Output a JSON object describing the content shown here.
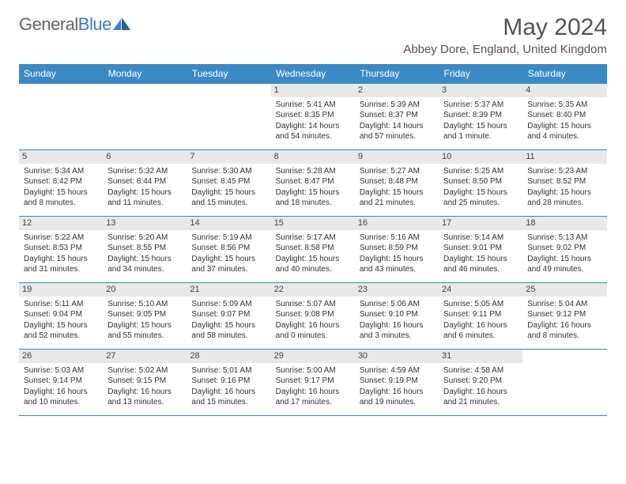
{
  "brand": {
    "part1": "General",
    "part2": "Blue"
  },
  "title": "May 2024",
  "location": "Abbey Dore, England, United Kingdom",
  "colors": {
    "header_bg": "#3b8ac4",
    "header_text": "#ffffff",
    "daynum_bg": "#e8e8e8",
    "border": "#3b8ac4",
    "text": "#333333",
    "page_bg": "#ffffff"
  },
  "typography": {
    "title_fontsize": 30,
    "location_fontsize": 15,
    "dayheader_fontsize": 12,
    "cell_fontsize": 10
  },
  "day_headers": [
    "Sunday",
    "Monday",
    "Tuesday",
    "Wednesday",
    "Thursday",
    "Friday",
    "Saturday"
  ],
  "layout": {
    "columns": 7,
    "rows": 5,
    "first_weekday_index": 3,
    "days_in_month": 31
  },
  "days": [
    {
      "n": 1,
      "sunrise": "5:41 AM",
      "sunset": "8:35 PM",
      "daylight": "14 hours and 54 minutes."
    },
    {
      "n": 2,
      "sunrise": "5:39 AM",
      "sunset": "8:37 PM",
      "daylight": "14 hours and 57 minutes."
    },
    {
      "n": 3,
      "sunrise": "5:37 AM",
      "sunset": "8:39 PM",
      "daylight": "15 hours and 1 minute."
    },
    {
      "n": 4,
      "sunrise": "5:35 AM",
      "sunset": "8:40 PM",
      "daylight": "15 hours and 4 minutes."
    },
    {
      "n": 5,
      "sunrise": "5:34 AM",
      "sunset": "8:42 PM",
      "daylight": "15 hours and 8 minutes."
    },
    {
      "n": 6,
      "sunrise": "5:32 AM",
      "sunset": "8:44 PM",
      "daylight": "15 hours and 11 minutes."
    },
    {
      "n": 7,
      "sunrise": "5:30 AM",
      "sunset": "8:45 PM",
      "daylight": "15 hours and 15 minutes."
    },
    {
      "n": 8,
      "sunrise": "5:28 AM",
      "sunset": "8:47 PM",
      "daylight": "15 hours and 18 minutes."
    },
    {
      "n": 9,
      "sunrise": "5:27 AM",
      "sunset": "8:48 PM",
      "daylight": "15 hours and 21 minutes."
    },
    {
      "n": 10,
      "sunrise": "5:25 AM",
      "sunset": "8:50 PM",
      "daylight": "15 hours and 25 minutes."
    },
    {
      "n": 11,
      "sunrise": "5:23 AM",
      "sunset": "8:52 PM",
      "daylight": "15 hours and 28 minutes."
    },
    {
      "n": 12,
      "sunrise": "5:22 AM",
      "sunset": "8:53 PM",
      "daylight": "15 hours and 31 minutes."
    },
    {
      "n": 13,
      "sunrise": "5:20 AM",
      "sunset": "8:55 PM",
      "daylight": "15 hours and 34 minutes."
    },
    {
      "n": 14,
      "sunrise": "5:19 AM",
      "sunset": "8:56 PM",
      "daylight": "15 hours and 37 minutes."
    },
    {
      "n": 15,
      "sunrise": "5:17 AM",
      "sunset": "8:58 PM",
      "daylight": "15 hours and 40 minutes."
    },
    {
      "n": 16,
      "sunrise": "5:16 AM",
      "sunset": "8:59 PM",
      "daylight": "15 hours and 43 minutes."
    },
    {
      "n": 17,
      "sunrise": "5:14 AM",
      "sunset": "9:01 PM",
      "daylight": "15 hours and 46 minutes."
    },
    {
      "n": 18,
      "sunrise": "5:13 AM",
      "sunset": "9:02 PM",
      "daylight": "15 hours and 49 minutes."
    },
    {
      "n": 19,
      "sunrise": "5:11 AM",
      "sunset": "9:04 PM",
      "daylight": "15 hours and 52 minutes."
    },
    {
      "n": 20,
      "sunrise": "5:10 AM",
      "sunset": "9:05 PM",
      "daylight": "15 hours and 55 minutes."
    },
    {
      "n": 21,
      "sunrise": "5:09 AM",
      "sunset": "9:07 PM",
      "daylight": "15 hours and 58 minutes."
    },
    {
      "n": 22,
      "sunrise": "5:07 AM",
      "sunset": "9:08 PM",
      "daylight": "16 hours and 0 minutes."
    },
    {
      "n": 23,
      "sunrise": "5:06 AM",
      "sunset": "9:10 PM",
      "daylight": "16 hours and 3 minutes."
    },
    {
      "n": 24,
      "sunrise": "5:05 AM",
      "sunset": "9:11 PM",
      "daylight": "16 hours and 6 minutes."
    },
    {
      "n": 25,
      "sunrise": "5:04 AM",
      "sunset": "9:12 PM",
      "daylight": "16 hours and 8 minutes."
    },
    {
      "n": 26,
      "sunrise": "5:03 AM",
      "sunset": "9:14 PM",
      "daylight": "16 hours and 10 minutes."
    },
    {
      "n": 27,
      "sunrise": "5:02 AM",
      "sunset": "9:15 PM",
      "daylight": "16 hours and 13 minutes."
    },
    {
      "n": 28,
      "sunrise": "5:01 AM",
      "sunset": "9:16 PM",
      "daylight": "16 hours and 15 minutes."
    },
    {
      "n": 29,
      "sunrise": "5:00 AM",
      "sunset": "9:17 PM",
      "daylight": "16 hours and 17 minutes."
    },
    {
      "n": 30,
      "sunrise": "4:59 AM",
      "sunset": "9:19 PM",
      "daylight": "16 hours and 19 minutes."
    },
    {
      "n": 31,
      "sunrise": "4:58 AM",
      "sunset": "9:20 PM",
      "daylight": "16 hours and 21 minutes."
    }
  ],
  "labels": {
    "sunrise": "Sunrise:",
    "sunset": "Sunset:",
    "daylight": "Daylight:"
  }
}
